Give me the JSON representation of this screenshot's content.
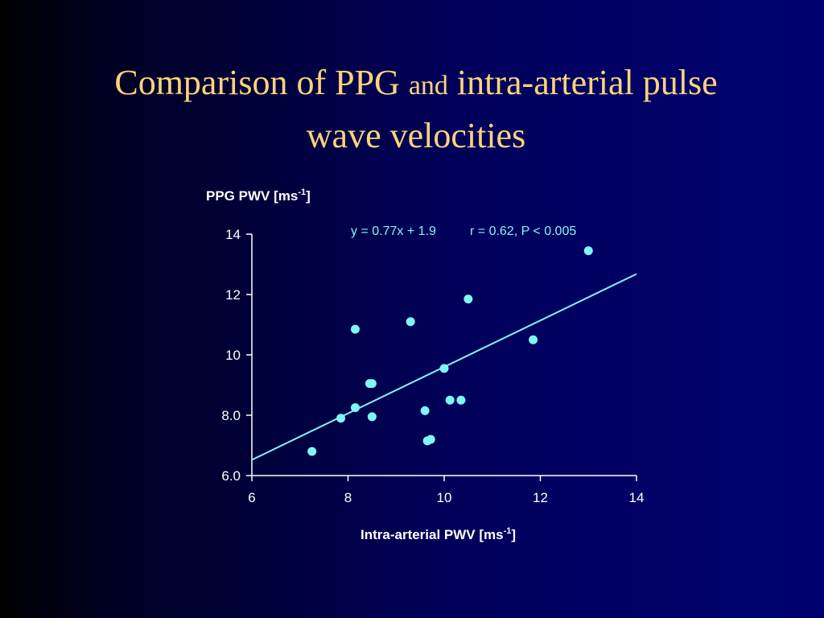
{
  "slide": {
    "title_line1_a": "Comparison of PPG",
    "title_line1_b": "and",
    "title_line1_c": "intra-arterial pulse",
    "title_line2": "wave velocities"
  },
  "chart_data": {
    "type": "scatter",
    "ylabel_main": "PPG PWV [ms",
    "ylabel_sup": "-1",
    "ylabel_end": "]",
    "xlabel_main": "Intra-arterial PWV [ms",
    "xlabel_sup": "-1",
    "xlabel_end": "]",
    "annotation_eq": "y = 0.77x + 1.9",
    "annotation_r": "r  = 0.62, P < 0.005",
    "xlim": [
      6,
      14
    ],
    "ylim": [
      6,
      14
    ],
    "x_ticks": [
      6,
      8,
      10,
      12,
      14
    ],
    "x_tick_labels": [
      "6",
      "8",
      "10",
      "12",
      "14"
    ],
    "y_ticks": [
      6,
      8,
      10,
      12,
      14
    ],
    "y_tick_labels": [
      "6.0",
      "8.0",
      "10",
      "12",
      "14"
    ],
    "points": [
      {
        "x": 7.25,
        "y": 6.8
      },
      {
        "x": 7.85,
        "y": 7.9
      },
      {
        "x": 8.15,
        "y": 8.25
      },
      {
        "x": 8.15,
        "y": 10.85
      },
      {
        "x": 8.45,
        "y": 9.05
      },
      {
        "x": 8.5,
        "y": 9.05
      },
      {
        "x": 8.5,
        "y": 7.95
      },
      {
        "x": 9.3,
        "y": 11.1
      },
      {
        "x": 9.6,
        "y": 8.15
      },
      {
        "x": 9.65,
        "y": 7.15
      },
      {
        "x": 9.72,
        "y": 7.2
      },
      {
        "x": 10.0,
        "y": 9.55
      },
      {
        "x": 10.12,
        "y": 8.5
      },
      {
        "x": 10.35,
        "y": 8.5
      },
      {
        "x": 10.5,
        "y": 11.85
      },
      {
        "x": 11.85,
        "y": 10.5
      },
      {
        "x": 13.0,
        "y": 13.45
      }
    ],
    "fit_line": {
      "slope": 0.77,
      "intercept": 1.9,
      "x_range": [
        6,
        14
      ]
    },
    "colors": {
      "points": "#7ff6f6",
      "fit": "#7ff6f6",
      "axis": "#ffffff"
    }
  }
}
